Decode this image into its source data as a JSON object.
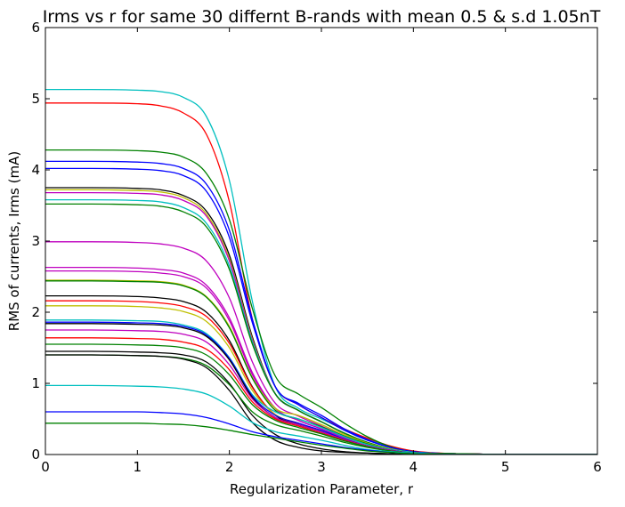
{
  "chart_data": {
    "type": "line",
    "title": "Irms vs r for same 30 differnt B-rands with mean 0.5 & s.d 1.05nT",
    "xlabel": "Regularization Parameter, r",
    "ylabel": "RMS of currents, Irms (mA)",
    "xlim": [
      0,
      6
    ],
    "ylim": [
      0,
      6
    ],
    "xticks": [
      0,
      1,
      2,
      3,
      4,
      5,
      6
    ],
    "yticks": [
      0,
      1,
      2,
      3,
      4,
      5,
      6
    ],
    "grid": false,
    "legend": "none",
    "x_samples": [
      0,
      0.5,
      1,
      1.25,
      1.5,
      1.75,
      2,
      2.25,
      2.5,
      2.75,
      3,
      3.25,
      3.5,
      3.75,
      4,
      4.5,
      5,
      6
    ],
    "series": [
      {
        "color": "#00bfbf",
        "values": [
          5.13,
          5.13,
          5.12,
          5.1,
          5.02,
          4.75,
          3.85,
          2.15,
          0.95,
          0.65,
          0.5,
          0.35,
          0.22,
          0.11,
          0.04,
          0.01,
          0.0,
          0.0
        ]
      },
      {
        "color": "#ff0000",
        "values": [
          4.94,
          4.94,
          4.93,
          4.9,
          4.8,
          4.5,
          3.55,
          1.9,
          0.95,
          0.7,
          0.52,
          0.36,
          0.23,
          0.12,
          0.05,
          0.01,
          0.0,
          0.0
        ]
      },
      {
        "color": "#008000",
        "values": [
          4.28,
          4.28,
          4.27,
          4.25,
          4.18,
          3.95,
          3.3,
          2.05,
          1.1,
          0.85,
          0.66,
          0.44,
          0.25,
          0.11,
          0.04,
          0.01,
          0.0,
          0.0
        ]
      },
      {
        "color": "#0000ff",
        "values": [
          4.12,
          4.12,
          4.11,
          4.09,
          4.02,
          3.8,
          3.15,
          1.9,
          0.95,
          0.72,
          0.55,
          0.36,
          0.21,
          0.1,
          0.04,
          0.01,
          0.0,
          0.0
        ]
      },
      {
        "color": "#0000ff",
        "values": [
          4.02,
          4.02,
          4.01,
          3.99,
          3.92,
          3.7,
          3.05,
          1.85,
          0.95,
          0.7,
          0.52,
          0.34,
          0.2,
          0.1,
          0.04,
          0.01,
          0.0,
          0.0
        ]
      },
      {
        "color": "#000000",
        "values": [
          3.75,
          3.75,
          3.74,
          3.72,
          3.64,
          3.42,
          2.8,
          1.65,
          0.85,
          0.62,
          0.46,
          0.3,
          0.17,
          0.08,
          0.03,
          0.01,
          0.0,
          0.0
        ]
      },
      {
        "color": "#bfbf00",
        "values": [
          3.72,
          3.72,
          3.71,
          3.69,
          3.61,
          3.38,
          2.75,
          1.62,
          0.85,
          0.62,
          0.46,
          0.3,
          0.17,
          0.08,
          0.03,
          0.01,
          0.0,
          0.0
        ]
      },
      {
        "color": "#bf00bf",
        "values": [
          3.68,
          3.68,
          3.67,
          3.65,
          3.57,
          3.35,
          2.72,
          1.6,
          0.85,
          0.62,
          0.46,
          0.3,
          0.17,
          0.08,
          0.03,
          0.01,
          0.0,
          0.0
        ]
      },
      {
        "color": "#00bfbf",
        "values": [
          3.58,
          3.58,
          3.57,
          3.55,
          3.47,
          3.25,
          2.65,
          1.58,
          0.85,
          0.62,
          0.46,
          0.3,
          0.17,
          0.08,
          0.03,
          0.01,
          0.0,
          0.0
        ]
      },
      {
        "color": "#008000",
        "values": [
          3.52,
          3.52,
          3.51,
          3.49,
          3.41,
          3.2,
          2.6,
          1.55,
          0.85,
          0.62,
          0.46,
          0.3,
          0.17,
          0.08,
          0.03,
          0.01,
          0.0,
          0.0
        ]
      },
      {
        "color": "#bf00bf",
        "values": [
          2.99,
          2.99,
          2.98,
          2.96,
          2.9,
          2.72,
          2.2,
          1.3,
          0.72,
          0.54,
          0.4,
          0.26,
          0.15,
          0.07,
          0.03,
          0.01,
          0.0,
          0.0
        ]
      },
      {
        "color": "#bf00bf",
        "values": [
          2.63,
          2.63,
          2.62,
          2.6,
          2.55,
          2.38,
          1.92,
          1.15,
          0.65,
          0.48,
          0.36,
          0.24,
          0.14,
          0.07,
          0.03,
          0.01,
          0.0,
          0.0
        ]
      },
      {
        "color": "#bf00bf",
        "values": [
          2.58,
          2.58,
          2.57,
          2.55,
          2.5,
          2.34,
          1.88,
          1.12,
          0.65,
          0.48,
          0.36,
          0.24,
          0.14,
          0.07,
          0.03,
          0.01,
          0.0,
          0.0
        ]
      },
      {
        "color": "#bfbf00",
        "values": [
          2.45,
          2.45,
          2.44,
          2.43,
          2.38,
          2.22,
          1.8,
          1.08,
          0.65,
          0.55,
          0.42,
          0.28,
          0.16,
          0.08,
          0.03,
          0.01,
          0.0,
          0.0
        ]
      },
      {
        "color": "#008000",
        "values": [
          2.44,
          2.44,
          2.43,
          2.42,
          2.37,
          2.21,
          1.78,
          1.07,
          0.62,
          0.5,
          0.39,
          0.26,
          0.15,
          0.07,
          0.03,
          0.01,
          0.0,
          0.0
        ]
      },
      {
        "color": "#000000",
        "values": [
          2.23,
          2.23,
          2.22,
          2.2,
          2.15,
          2.0,
          1.6,
          0.95,
          0.55,
          0.42,
          0.32,
          0.21,
          0.12,
          0.06,
          0.02,
          0.01,
          0.0,
          0.0
        ]
      },
      {
        "color": "#ff0000",
        "values": [
          2.16,
          2.16,
          2.15,
          2.13,
          2.08,
          1.94,
          1.56,
          0.94,
          0.56,
          0.44,
          0.33,
          0.22,
          0.12,
          0.06,
          0.02,
          0.01,
          0.0,
          0.0
        ]
      },
      {
        "color": "#bfbf00",
        "values": [
          2.09,
          2.09,
          2.08,
          2.06,
          2.01,
          1.87,
          1.5,
          0.9,
          0.56,
          0.44,
          0.33,
          0.22,
          0.12,
          0.06,
          0.02,
          0.01,
          0.0,
          0.0
        ]
      },
      {
        "color": "#00bfbf",
        "values": [
          1.89,
          1.89,
          1.88,
          1.87,
          1.82,
          1.7,
          1.36,
          0.84,
          0.6,
          0.5,
          0.38,
          0.25,
          0.14,
          0.07,
          0.03,
          0.01,
          0.0,
          0.0
        ]
      },
      {
        "color": "#0000ff",
        "values": [
          1.86,
          1.86,
          1.85,
          1.84,
          1.8,
          1.68,
          1.35,
          0.82,
          0.55,
          0.44,
          0.34,
          0.22,
          0.12,
          0.06,
          0.02,
          0.01,
          0.0,
          0.0
        ]
      },
      {
        "color": "#000000",
        "values": [
          1.84,
          1.84,
          1.83,
          1.82,
          1.78,
          1.66,
          1.33,
          0.8,
          0.52,
          0.42,
          0.32,
          0.21,
          0.12,
          0.06,
          0.02,
          0.01,
          0.0,
          0.0
        ]
      },
      {
        "color": "#bf00bf",
        "values": [
          1.75,
          1.75,
          1.74,
          1.73,
          1.69,
          1.58,
          1.26,
          0.78,
          0.52,
          0.42,
          0.32,
          0.21,
          0.12,
          0.06,
          0.02,
          0.01,
          0.0,
          0.0
        ]
      },
      {
        "color": "#ff0000",
        "values": [
          1.64,
          1.64,
          1.63,
          1.62,
          1.58,
          1.48,
          1.19,
          0.74,
          0.5,
          0.4,
          0.3,
          0.2,
          0.11,
          0.05,
          0.02,
          0.01,
          0.0,
          0.0
        ]
      },
      {
        "color": "#008000",
        "values": [
          1.55,
          1.55,
          1.54,
          1.53,
          1.5,
          1.4,
          1.12,
          0.7,
          0.48,
          0.38,
          0.29,
          0.19,
          0.11,
          0.05,
          0.02,
          0.01,
          0.0,
          0.0
        ]
      },
      {
        "color": "#000000",
        "values": [
          1.45,
          1.45,
          1.44,
          1.43,
          1.4,
          1.3,
          1.0,
          0.55,
          0.28,
          0.15,
          0.08,
          0.04,
          0.02,
          0.01,
          0.0,
          0.0,
          0.0,
          0.0
        ]
      },
      {
        "color": "#008000",
        "values": [
          1.4,
          1.4,
          1.39,
          1.38,
          1.35,
          1.25,
          0.98,
          0.6,
          0.42,
          0.34,
          0.26,
          0.17,
          0.1,
          0.05,
          0.02,
          0.01,
          0.0,
          0.0
        ]
      },
      {
        "color": "#000000",
        "values": [
          1.4,
          1.4,
          1.39,
          1.38,
          1.34,
          1.22,
          0.9,
          0.45,
          0.2,
          0.1,
          0.05,
          0.03,
          0.02,
          0.01,
          0.0,
          0.0,
          0.0,
          0.0
        ]
      },
      {
        "color": "#00bfbf",
        "values": [
          0.97,
          0.97,
          0.96,
          0.95,
          0.92,
          0.85,
          0.68,
          0.45,
          0.32,
          0.26,
          0.2,
          0.13,
          0.07,
          0.04,
          0.02,
          0.0,
          0.0,
          0.0
        ]
      },
      {
        "color": "#0000ff",
        "values": [
          0.6,
          0.6,
          0.6,
          0.59,
          0.57,
          0.52,
          0.43,
          0.32,
          0.25,
          0.2,
          0.15,
          0.1,
          0.06,
          0.03,
          0.01,
          0.0,
          0.0,
          0.0
        ]
      },
      {
        "color": "#008000",
        "values": [
          0.44,
          0.44,
          0.44,
          0.43,
          0.42,
          0.39,
          0.34,
          0.28,
          0.23,
          0.18,
          0.13,
          0.09,
          0.05,
          0.03,
          0.01,
          0.0,
          0.0,
          0.0
        ]
      }
    ]
  }
}
